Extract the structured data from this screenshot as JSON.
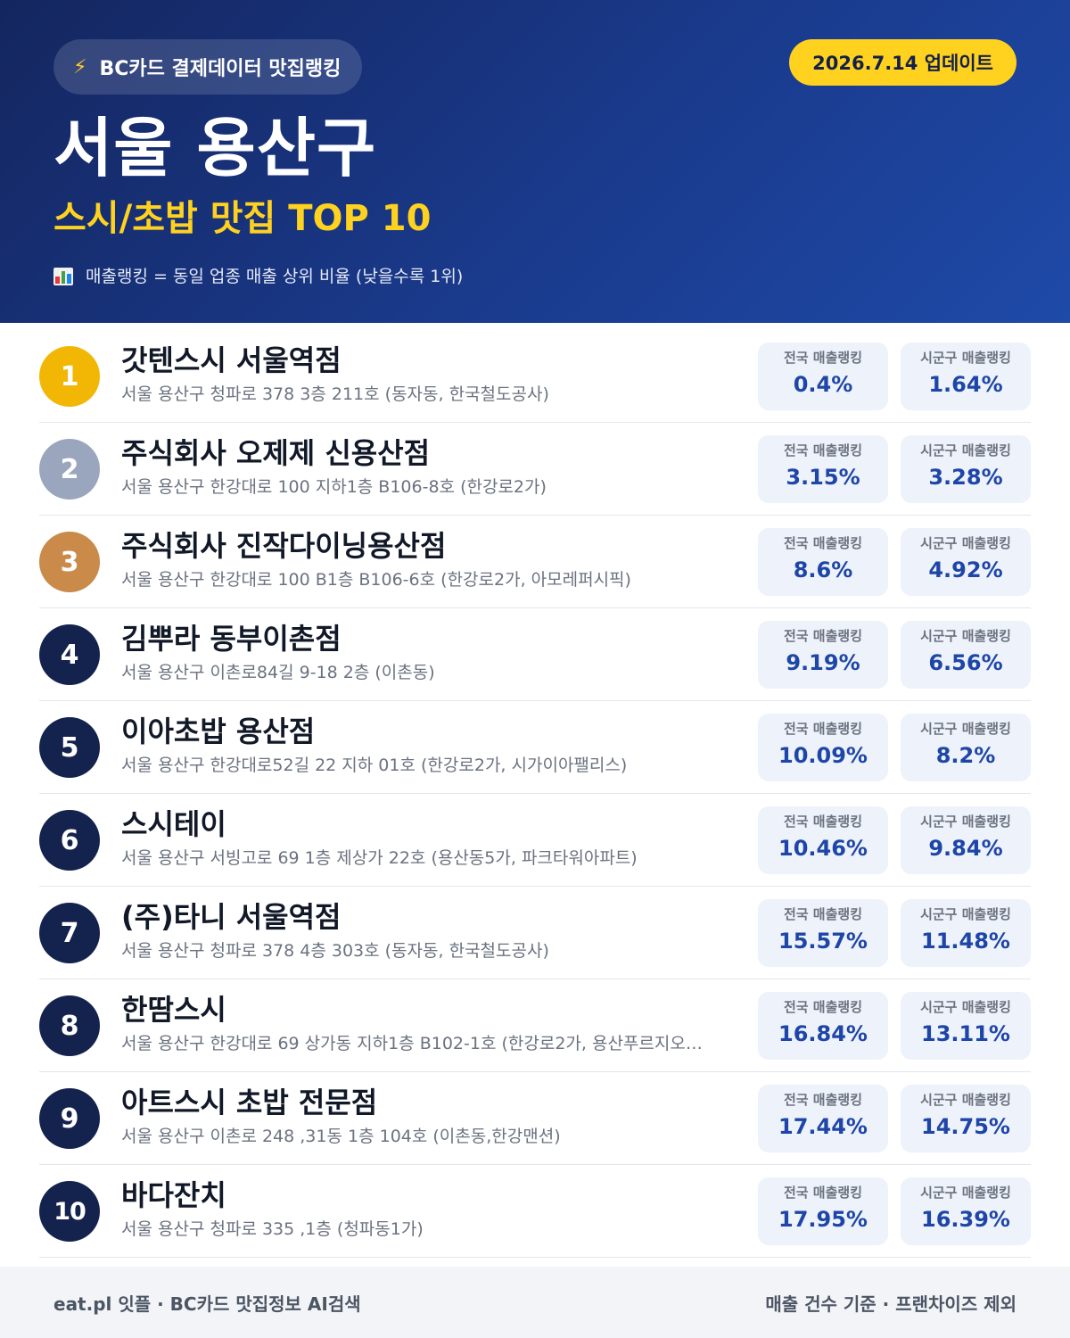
{
  "header": {
    "source": "BC카드 결제데이터 맛집랭킹",
    "update": "2026.7.14 업데이트",
    "title": "서울 용산구",
    "subtitle": "스시/초밥 맛집 TOP 10",
    "note": "매출랭킹 = 동일 업종 매출 상위 비율 (낮을수록 1위)",
    "accent_color": "#ffd21f",
    "background_color": "#1a3a8c"
  },
  "labels": {
    "national": "전국 매출랭킹",
    "local": "시군구 매출랭킹"
  },
  "restaurants": [
    {
      "rank": "1",
      "name": "갓텐스시 서울역점",
      "address": "서울 용산구 청파로 378 3층 211호 (동자동, 한국철도공사)",
      "national": "0.4%",
      "local": "1.64%"
    },
    {
      "rank": "2",
      "name": "주식회사 오제제 신용산점",
      "address": "서울 용산구 한강대로 100 지하1층 B106-8호 (한강로2가)",
      "national": "3.15%",
      "local": "3.28%"
    },
    {
      "rank": "3",
      "name": "주식회사 진작다이닝용산점",
      "address": "서울 용산구 한강대로 100 B1층 B106-6호 (한강로2가, 아모레퍼시픽)",
      "national": "8.6%",
      "local": "4.92%"
    },
    {
      "rank": "4",
      "name": "김뿌라 동부이촌점",
      "address": "서울 용산구 이촌로84길 9-18 2층 (이촌동)",
      "national": "9.19%",
      "local": "6.56%"
    },
    {
      "rank": "5",
      "name": "이아초밥 용산점",
      "address": "서울 용산구 한강대로52길 22 지하 01호 (한강로2가, 시가이아팰리스)",
      "national": "10.09%",
      "local": "8.2%"
    },
    {
      "rank": "6",
      "name": "스시테이",
      "address": "서울 용산구 서빙고로 69 1층 제상가 22호 (용산동5가, 파크타워아파트)",
      "national": "10.46%",
      "local": "9.84%"
    },
    {
      "rank": "7",
      "name": "(주)타니 서울역점",
      "address": "서울 용산구 청파로 378 4층 303호 (동자동, 한국철도공사)",
      "national": "15.57%",
      "local": "11.48%"
    },
    {
      "rank": "8",
      "name": "한땀스시",
      "address": "서울 용산구 한강대로 69 상가동 지하1층 B102-1호 (한강로2가, 용산푸르지오…",
      "national": "16.84%",
      "local": "13.11%"
    },
    {
      "rank": "9",
      "name": "아트스시 초밥 전문점",
      "address": "서울 용산구 이촌로 248 ,31동 1층 104호 (이촌동,한강맨션)",
      "national": "17.44%",
      "local": "14.75%"
    },
    {
      "rank": "10",
      "name": "바다잔치",
      "address": "서울 용산구 청파로 335 ,1층 (청파동1가)",
      "national": "17.95%",
      "local": "16.39%"
    }
  ],
  "footer": {
    "left": "eat.pl 잇플 · BC카드 맛집정보 AI검색",
    "right": "매출 건수 기준 · 프랜차이즈 제외"
  }
}
